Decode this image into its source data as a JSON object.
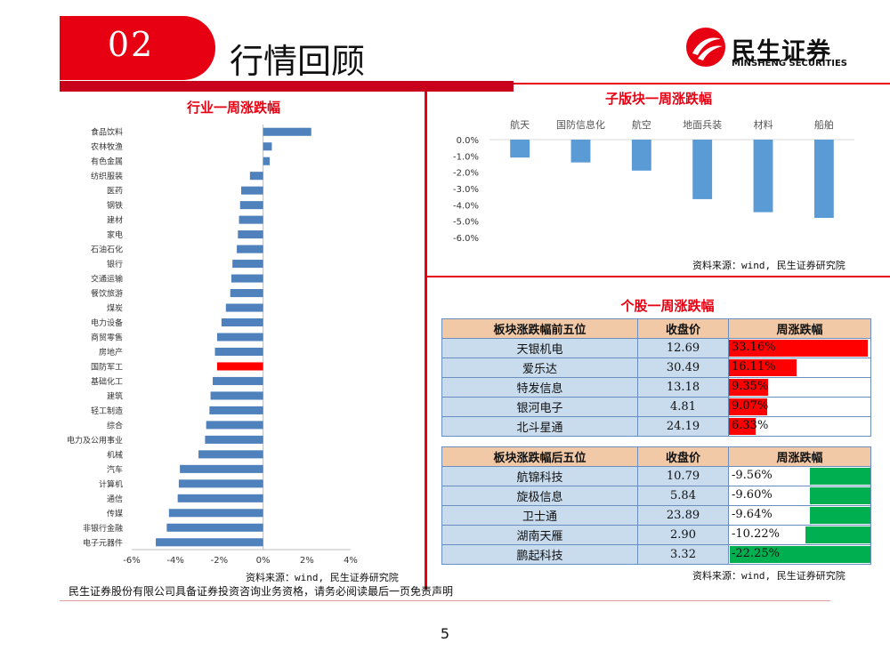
{
  "header": {
    "section_number": "02",
    "title": "行情回顾"
  },
  "logo": {
    "name_cn": "民生证券",
    "name_en": "MINSHENG SECURITIES"
  },
  "colors": {
    "brand_red": "#e60012",
    "bar_blue": "#4f81bd",
    "highlight_red": "#ff0000",
    "down_green": "#00b050"
  },
  "industry_chart": {
    "title": "行业一周涨跌幅",
    "source": "资料来源：wind, 民生证券研究院",
    "chart_data": {
      "type": "bar",
      "orientation": "horizontal",
      "categories": [
        "食品饮料",
        "农林牧渔",
        "有色金属",
        "纺织服装",
        "医药",
        "钢铁",
        "建材",
        "家电",
        "石油石化",
        "银行",
        "交通运输",
        "餐饮旅游",
        "煤炭",
        "电力设备",
        "商贸零售",
        "房地产",
        "国防军工",
        "基础化工",
        "建筑",
        "轻工制造",
        "综合",
        "电力及公用事业",
        "机械",
        "汽车",
        "计算机",
        "通信",
        "传媒",
        "非银行金融",
        "电子元器件"
      ],
      "values": [
        2.2,
        0.4,
        0.3,
        -0.6,
        -1.0,
        -1.05,
        -1.1,
        -1.15,
        -1.2,
        -1.4,
        -1.45,
        -1.5,
        -1.7,
        -1.9,
        -2.1,
        -2.2,
        -2.1,
        -2.3,
        -2.4,
        -2.45,
        -2.6,
        -2.65,
        -2.95,
        -3.8,
        -3.85,
        -3.9,
        -4.3,
        -4.4,
        -4.9
      ],
      "highlight": "国防军工",
      "xlim": [
        -6,
        4
      ],
      "ticks": [
        -6,
        -4,
        -2,
        0,
        2,
        4
      ],
      "tick_labels": [
        "-6%",
        "-4%",
        "-2%",
        "0%",
        "2%",
        "4%"
      ]
    }
  },
  "subsector_chart": {
    "title": "子版块一周涨跌幅",
    "source": "资料来源：wind, 民生证券研究院",
    "chart_data": {
      "type": "bar",
      "categories": [
        "航天",
        "国防信息化",
        "航空",
        "地面兵装",
        "材料",
        "船舶"
      ],
      "values": [
        -1.1,
        -1.4,
        -1.9,
        -3.65,
        -4.45,
        -4.8
      ],
      "ylim": [
        -6,
        0
      ],
      "ticks": [
        0,
        -1,
        -2,
        -3,
        -4,
        -5,
        -6
      ],
      "tick_labels": [
        "0.0%",
        "-1.0%",
        "-2.0%",
        "-3.0%",
        "-4.0%",
        "-5.0%",
        "-6.0%"
      ]
    }
  },
  "stocks": {
    "title": "个股一周涨跌幅",
    "source": "资料来源：wind, 民生证券研究院",
    "top": {
      "headers": [
        "板块涨跌幅前五位",
        "收盘价",
        "周涨跌幅"
      ],
      "rows": [
        {
          "name": "天银机电",
          "price": "12.69",
          "pct": "33.16%",
          "value": 33.16
        },
        {
          "name": "爱乐达",
          "price": "30.49",
          "pct": "16.11%",
          "value": 16.11
        },
        {
          "name": "特发信息",
          "price": "13.18",
          "pct": "9.35%",
          "value": 9.35
        },
        {
          "name": "银河电子",
          "price": "4.81",
          "pct": "9.07%",
          "value": 9.07
        },
        {
          "name": "北斗星通",
          "price": "24.19",
          "pct": "6.33%",
          "value": 6.33
        }
      ]
    },
    "bottom": {
      "headers": [
        "板块涨跌幅后五位",
        "收盘价",
        "周涨跌幅"
      ],
      "rows": [
        {
          "name": "航锦科技",
          "price": "10.79",
          "pct": "-9.56%",
          "value": -9.56
        },
        {
          "name": "旋极信息",
          "price": "5.84",
          "pct": "-9.60%",
          "value": -9.6
        },
        {
          "name": "卫士通",
          "price": "23.89",
          "pct": "-9.64%",
          "value": -9.64
        },
        {
          "name": "湖南天雁",
          "price": "2.90",
          "pct": "-10.22%",
          "value": -10.22
        },
        {
          "name": "鹏起科技",
          "price": "3.32",
          "pct": "-22.25%",
          "value": -22.25
        }
      ]
    }
  },
  "footer": {
    "disclaimer": "民生证券股份有限公司具备证券投资咨询业务资格，请务必阅读最后一页免责声明",
    "page_number": "5"
  }
}
